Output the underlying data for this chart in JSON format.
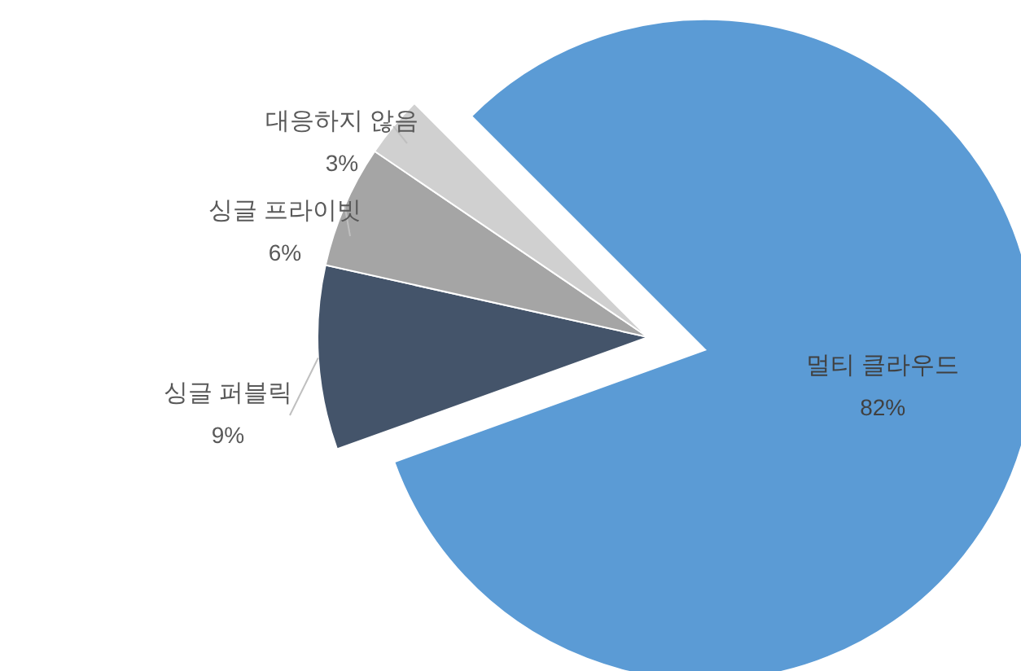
{
  "chart_data": {
    "type": "pie",
    "categories": [
      "멀티 클라우드",
      "싱글 퍼블릭",
      "싱글 프라이빗",
      "대응하지 않음"
    ],
    "values": [
      82,
      9,
      6,
      3
    ],
    "colors": [
      "#5b9bd5",
      "#44546a",
      "#a5a5a5",
      "#d0d0d0"
    ],
    "value_labels": [
      "82%",
      "9%",
      "6%",
      "3%"
    ]
  }
}
